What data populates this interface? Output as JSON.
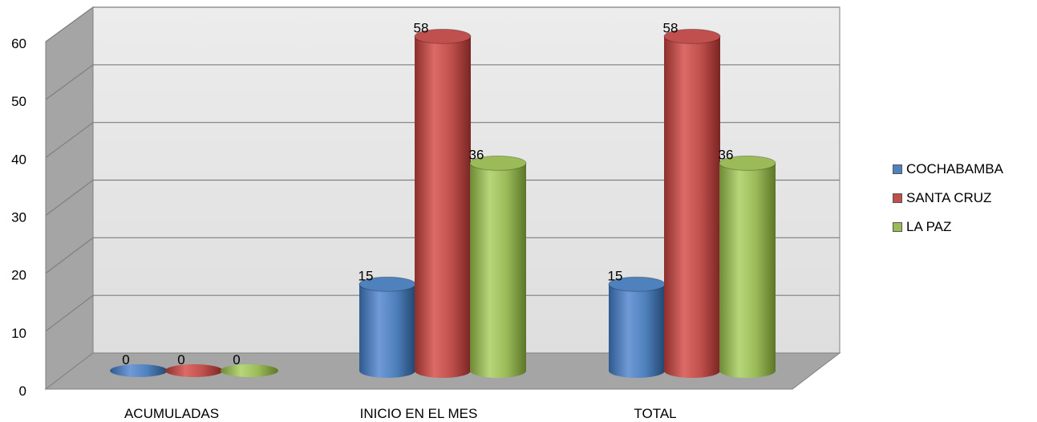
{
  "chart_data": {
    "type": "bar",
    "style": "3d-cylinder",
    "categories": [
      "ACUMULADAS",
      "INICIO EN EL MES",
      "TOTAL"
    ],
    "series": [
      {
        "name": "COCHABAMBA",
        "color": "#4F81BD",
        "values": [
          0,
          15,
          15
        ]
      },
      {
        "name": "SANTA CRUZ",
        "color": "#C0504D",
        "values": [
          0,
          58,
          58
        ]
      },
      {
        "name": "LA PAZ",
        "color": "#9BBB59",
        "values": [
          0,
          36,
          36
        ]
      }
    ],
    "yticks": [
      "0",
      "10",
      "20",
      "30",
      "40",
      "50",
      "60"
    ],
    "ylim": [
      0,
      60
    ],
    "grid": true,
    "legend_position": "right",
    "data_labels": true
  }
}
